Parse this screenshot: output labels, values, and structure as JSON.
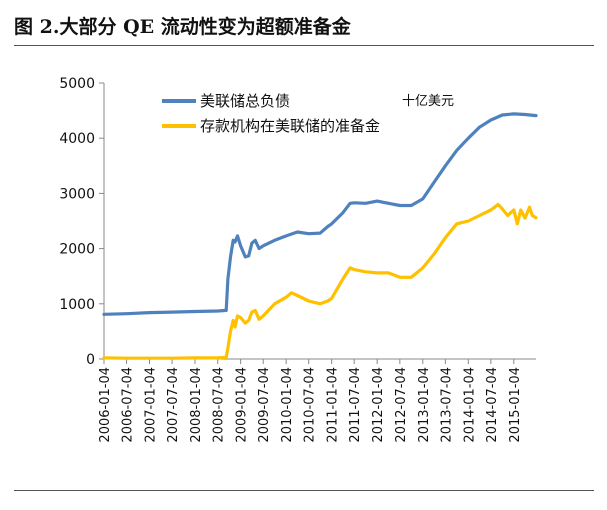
{
  "figure_title": "图 2.大部分 QE 流动性变为超额准备金",
  "colors": {
    "series1": "#4F81BD",
    "series2": "#FFC000",
    "axis": "#888888",
    "text": "#111111"
  },
  "chart_data": {
    "type": "line",
    "title": "",
    "unit_label": "十亿美元",
    "ylim": [
      0,
      5000
    ],
    "yticks": [
      0,
      1000,
      2000,
      3000,
      4000,
      5000
    ],
    "xlim": [
      "2006-01-04",
      "2015-07-01"
    ],
    "xticks": [
      "2006-01-04",
      "2006-07-04",
      "2007-01-04",
      "2007-07-04",
      "2008-01-04",
      "2008-07-04",
      "2009-01-04",
      "2009-07-04",
      "2010-01-04",
      "2010-07-04",
      "2011-01-04",
      "2011-07-04",
      "2012-01-04",
      "2012-07-04",
      "2013-01-04",
      "2013-07-04",
      "2014-01-04",
      "2014-07-04",
      "2015-01-04"
    ],
    "legend_position": "top-left",
    "grid": false,
    "series": [
      {
        "name": "美联储总负债",
        "points": [
          [
            "2006-01-04",
            810
          ],
          [
            "2006-07-04",
            820
          ],
          [
            "2007-01-04",
            840
          ],
          [
            "2007-07-04",
            850
          ],
          [
            "2008-01-04",
            860
          ],
          [
            "2008-07-04",
            870
          ],
          [
            "2008-09-10",
            880
          ],
          [
            "2008-09-24",
            1450
          ],
          [
            "2008-10-15",
            1850
          ],
          [
            "2008-11-05",
            2150
          ],
          [
            "2008-11-20",
            2120
          ],
          [
            "2008-12-10",
            2230
          ],
          [
            "2009-01-04",
            2050
          ],
          [
            "2009-02-10",
            1850
          ],
          [
            "2009-03-10",
            1870
          ],
          [
            "2009-04-04",
            2100
          ],
          [
            "2009-05-01",
            2150
          ],
          [
            "2009-06-01",
            2000
          ],
          [
            "2009-07-04",
            2050
          ],
          [
            "2009-10-04",
            2150
          ],
          [
            "2010-01-04",
            2230
          ],
          [
            "2010-04-04",
            2300
          ],
          [
            "2010-07-04",
            2270
          ],
          [
            "2010-10-04",
            2280
          ],
          [
            "2010-12-04",
            2400
          ],
          [
            "2011-01-04",
            2450
          ],
          [
            "2011-04-04",
            2650
          ],
          [
            "2011-06-01",
            2820
          ],
          [
            "2011-07-04",
            2830
          ],
          [
            "2011-10-04",
            2820
          ],
          [
            "2012-01-04",
            2860
          ],
          [
            "2012-04-04",
            2820
          ],
          [
            "2012-07-04",
            2780
          ],
          [
            "2012-10-04",
            2780
          ],
          [
            "2013-01-04",
            2900
          ],
          [
            "2013-04-04",
            3200
          ],
          [
            "2013-07-04",
            3500
          ],
          [
            "2013-10-04",
            3780
          ],
          [
            "2014-01-04",
            4000
          ],
          [
            "2014-04-04",
            4200
          ],
          [
            "2014-07-04",
            4330
          ],
          [
            "2014-10-04",
            4420
          ],
          [
            "2015-01-04",
            4440
          ],
          [
            "2015-04-04",
            4430
          ],
          [
            "2015-07-01",
            4410
          ]
        ]
      },
      {
        "name": "存款机构在美联储的准备金",
        "points": [
          [
            "2006-01-04",
            20
          ],
          [
            "2006-07-04",
            15
          ],
          [
            "2007-01-04",
            15
          ],
          [
            "2007-07-04",
            15
          ],
          [
            "2008-01-04",
            20
          ],
          [
            "2008-07-04",
            20
          ],
          [
            "2008-09-10",
            30
          ],
          [
            "2008-09-24",
            200
          ],
          [
            "2008-10-15",
            500
          ],
          [
            "2008-11-05",
            700
          ],
          [
            "2008-11-20",
            580
          ],
          [
            "2008-12-10",
            780
          ],
          [
            "2009-01-04",
            750
          ],
          [
            "2009-02-10",
            650
          ],
          [
            "2009-03-10",
            700
          ],
          [
            "2009-04-04",
            850
          ],
          [
            "2009-05-01",
            880
          ],
          [
            "2009-06-01",
            720
          ],
          [
            "2009-07-04",
            780
          ],
          [
            "2009-10-04",
            1000
          ],
          [
            "2010-01-04",
            1120
          ],
          [
            "2010-02-15",
            1200
          ],
          [
            "2010-04-04",
            1150
          ],
          [
            "2010-07-04",
            1050
          ],
          [
            "2010-10-04",
            1000
          ],
          [
            "2010-12-04",
            1050
          ],
          [
            "2011-01-04",
            1100
          ],
          [
            "2011-04-04",
            1450
          ],
          [
            "2011-06-01",
            1650
          ],
          [
            "2011-07-04",
            1620
          ],
          [
            "2011-10-04",
            1580
          ],
          [
            "2012-01-04",
            1560
          ],
          [
            "2012-04-04",
            1560
          ],
          [
            "2012-07-04",
            1480
          ],
          [
            "2012-10-04",
            1480
          ],
          [
            "2013-01-04",
            1650
          ],
          [
            "2013-04-04",
            1900
          ],
          [
            "2013-07-04",
            2200
          ],
          [
            "2013-10-04",
            2450
          ],
          [
            "2014-01-04",
            2500
          ],
          [
            "2014-04-04",
            2600
          ],
          [
            "2014-07-04",
            2700
          ],
          [
            "2014-09-01",
            2800
          ],
          [
            "2014-10-04",
            2720
          ],
          [
            "2014-11-15",
            2600
          ],
          [
            "2015-01-04",
            2700
          ],
          [
            "2015-02-01",
            2450
          ],
          [
            "2015-03-01",
            2700
          ],
          [
            "2015-04-04",
            2550
          ],
          [
            "2015-05-10",
            2750
          ],
          [
            "2015-06-01",
            2600
          ],
          [
            "2015-07-01",
            2560
          ]
        ]
      }
    ]
  }
}
